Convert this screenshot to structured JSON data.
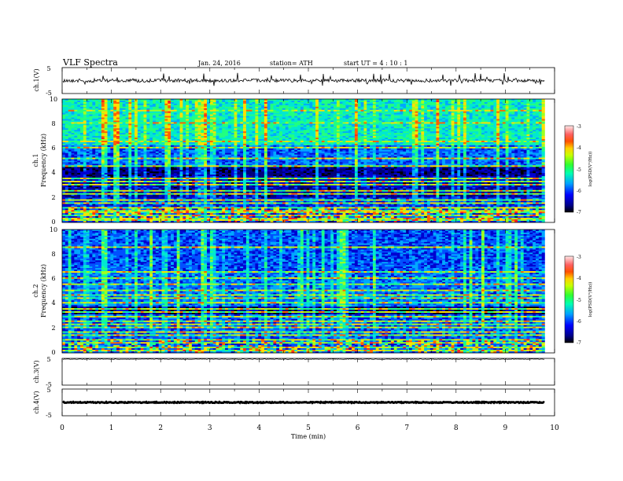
{
  "header": {
    "title": "VLF  Spectra",
    "date": "Jan. 24, 2016",
    "station": "station= ATH",
    "start": "start  UT  =   4 : 10 : 1"
  },
  "chart_data": {
    "type": "heatmap",
    "xlabel": "Time  (min)",
    "xlim": [
      0,
      10
    ],
    "x_ticks": [
      "0",
      "1",
      "2",
      "3",
      "4",
      "5",
      "6",
      "7",
      "8",
      "9",
      "10"
    ],
    "data_end_min": 9.8,
    "panels": [
      {
        "id": "ch1",
        "kind": "waveform",
        "ylabel": "ch.1(V)",
        "ylim": [
          -5,
          5
        ],
        "y_ticks": [
          "5",
          "-5"
        ],
        "baseline": 0,
        "noise": "high"
      },
      {
        "id": "ch1-spectrogram",
        "kind": "spectrogram",
        "ylabel_top": "ch.1",
        "ylabel": "Frequency  (kHz)",
        "ylim": [
          0,
          10
        ],
        "y_ticks": [
          "0",
          "2",
          "4",
          "6",
          "8",
          "10"
        ],
        "colorbar": {
          "label": "log(PSD(V²/Hz))",
          "range": [
            -7,
            -3
          ],
          "ticks": [
            "-3",
            "-4",
            "-5",
            "-6",
            "-7"
          ]
        },
        "bands_khz": [
          0.15,
          0.35,
          0.55,
          0.75,
          0.95,
          1.2,
          1.55,
          1.85,
          2.25,
          2.6,
          3.05,
          3.3,
          3.5,
          4.5,
          5.2,
          6.1,
          6.5,
          8.0,
          9.0
        ]
      },
      {
        "id": "ch2-spectrogram",
        "kind": "spectrogram",
        "ylabel_top": "ch.2",
        "ylabel": "Frequency  (kHz)",
        "ylim": [
          0,
          10
        ],
        "y_ticks": [
          "0",
          "2",
          "4",
          "6",
          "8",
          "10"
        ],
        "colorbar": {
          "label": "log(PSD(V²/Hz))",
          "range": [
            -7,
            -3
          ],
          "ticks": [
            "-3",
            "-4",
            "-5",
            "-6",
            "-7"
          ]
        },
        "bands_khz": [
          0.2,
          0.45,
          0.8,
          1.1,
          1.4,
          1.7,
          2.0,
          2.3,
          2.6,
          2.9,
          3.3,
          3.6,
          4.0,
          4.4,
          4.7,
          5.0,
          5.5,
          6.0,
          6.5,
          8.6
        ]
      },
      {
        "id": "ch3",
        "kind": "waveform",
        "ylabel": "ch.3(V)",
        "ylim": [
          -5,
          5
        ],
        "y_ticks": [
          "5",
          "-5"
        ],
        "baseline": 4.7,
        "noise": "low"
      },
      {
        "id": "ch4",
        "kind": "waveform",
        "ylabel": "ch.4(V)",
        "ylim": [
          -5,
          5
        ],
        "y_ticks": [
          "5",
          "-5"
        ],
        "baseline": 0,
        "noise": "thick"
      }
    ]
  }
}
